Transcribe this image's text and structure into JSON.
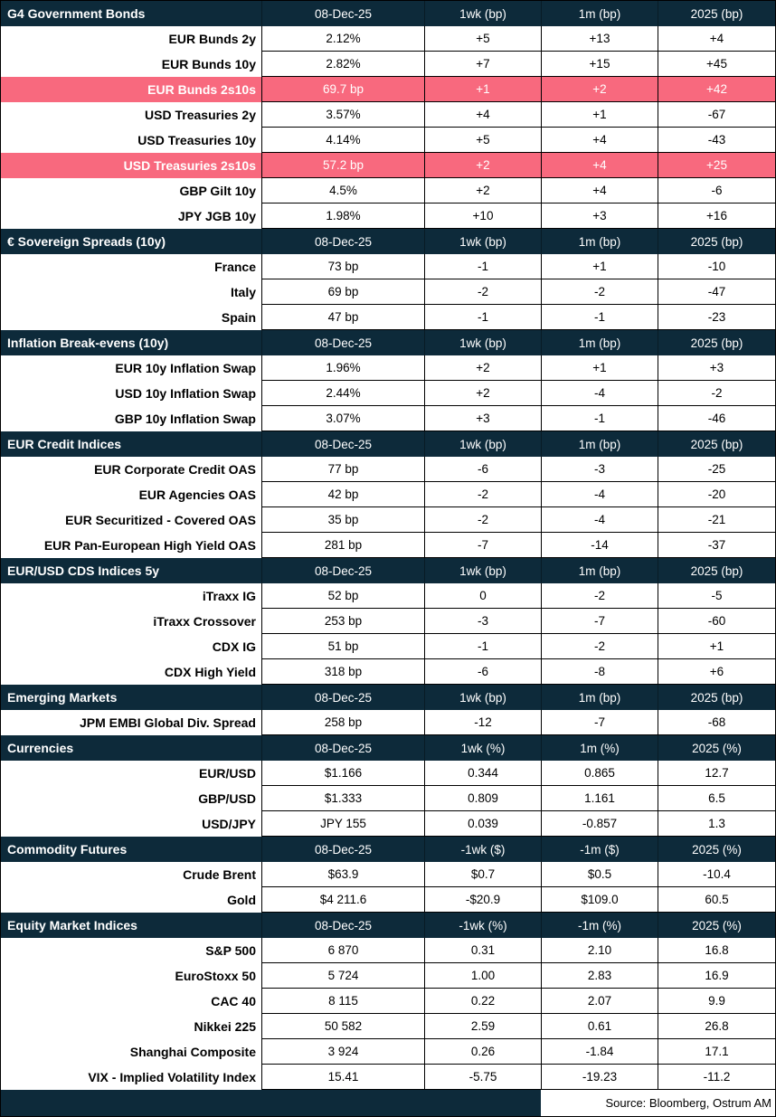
{
  "colors": {
    "header_bg": "#0d2a3a",
    "highlight_bg": "#f8697e",
    "header_text": "#ffffff",
    "body_text": "#000000"
  },
  "chart_data": {
    "type": "table",
    "footer_source": "Source: Bloomberg, Ostrum AM",
    "sections": [
      {
        "title": "G4 Government Bonds",
        "columns": [
          "08-Dec-25",
          "1wk (bp)",
          "1m (bp)",
          "2025 (bp)"
        ],
        "rows": [
          {
            "label": "EUR Bunds 2y",
            "values": [
              "2.12%",
              "+5",
              "+13",
              "+4"
            ],
            "highlight": false
          },
          {
            "label": "EUR Bunds 10y",
            "values": [
              "2.82%",
              "+7",
              "+15",
              "+45"
            ],
            "highlight": false
          },
          {
            "label": "EUR Bunds 2s10s",
            "values": [
              "69.7 bp",
              "+1",
              "+2",
              "+42"
            ],
            "highlight": true
          },
          {
            "label": "USD Treasuries 2y",
            "values": [
              "3.57%",
              "+4",
              "+1",
              "-67"
            ],
            "highlight": false
          },
          {
            "label": "USD Treasuries 10y",
            "values": [
              "4.14%",
              "+5",
              "+4",
              "-43"
            ],
            "highlight": false
          },
          {
            "label": "USD Treasuries 2s10s",
            "values": [
              "57.2 bp",
              "+2",
              "+4",
              "+25"
            ],
            "highlight": true
          },
          {
            "label": "GBP Gilt 10y",
            "values": [
              "4.5%",
              "+2",
              "+4",
              "-6"
            ],
            "highlight": false
          },
          {
            "label": "JPY JGB 10y",
            "values": [
              "1.98%",
              "+10",
              "+3",
              "+16"
            ],
            "highlight": false
          }
        ]
      },
      {
        "title": "€ Sovereign Spreads (10y)",
        "columns": [
          "08-Dec-25",
          "1wk (bp)",
          "1m (bp)",
          "2025 (bp)"
        ],
        "rows": [
          {
            "label": "France",
            "values": [
              "73 bp",
              "-1",
              "+1",
              "-10"
            ],
            "highlight": false
          },
          {
            "label": "Italy",
            "values": [
              "69 bp",
              "-2",
              "-2",
              "-47"
            ],
            "highlight": false
          },
          {
            "label": "Spain",
            "values": [
              "47 bp",
              "-1",
              "-1",
              "-23"
            ],
            "highlight": false
          }
        ]
      },
      {
        "title": "Inflation Break-evens (10y)",
        "columns": [
          "08-Dec-25",
          "1wk (bp)",
          "1m (bp)",
          "2025 (bp)"
        ],
        "rows": [
          {
            "label": "EUR 10y Inflation Swap",
            "values": [
              "1.96%",
              "+2",
              "+1",
              "+3"
            ],
            "highlight": false
          },
          {
            "label": "USD 10y Inflation Swap",
            "values": [
              "2.44%",
              "+2",
              "-4",
              "-2"
            ],
            "highlight": false
          },
          {
            "label": "GBP 10y Inflation Swap",
            "values": [
              "3.07%",
              "+3",
              "-1",
              "-46"
            ],
            "highlight": false
          }
        ]
      },
      {
        "title": "EUR Credit Indices",
        "columns": [
          "08-Dec-25",
          "1wk (bp)",
          "1m (bp)",
          "2025 (bp)"
        ],
        "rows": [
          {
            "label": "EUR Corporate Credit OAS",
            "values": [
              "77 bp",
              "-6",
              "-3",
              "-25"
            ],
            "highlight": false
          },
          {
            "label": "EUR Agencies OAS",
            "values": [
              "42 bp",
              "-2",
              "-4",
              "-20"
            ],
            "highlight": false
          },
          {
            "label": "EUR Securitized - Covered OAS",
            "values": [
              "35 bp",
              "-2",
              "-4",
              "-21"
            ],
            "highlight": false
          },
          {
            "label": "EUR Pan-European High Yield OAS",
            "values": [
              "281 bp",
              "-7",
              "-14",
              "-37"
            ],
            "highlight": false
          }
        ]
      },
      {
        "title": "EUR/USD CDS Indices 5y",
        "columns": [
          "08-Dec-25",
          "1wk (bp)",
          "1m (bp)",
          "2025 (bp)"
        ],
        "rows": [
          {
            "label": "iTraxx IG",
            "values": [
              "52 bp",
              "0",
              "-2",
              "-5"
            ],
            "highlight": false
          },
          {
            "label": "iTraxx Crossover",
            "values": [
              "253 bp",
              "-3",
              "-7",
              "-60"
            ],
            "highlight": false
          },
          {
            "label": "CDX IG",
            "values": [
              "51 bp",
              "-1",
              "-2",
              "+1"
            ],
            "highlight": false
          },
          {
            "label": "CDX High Yield",
            "values": [
              "318 bp",
              "-6",
              "-8",
              "+6"
            ],
            "highlight": false
          }
        ]
      },
      {
        "title": "Emerging Markets",
        "columns": [
          "08-Dec-25",
          "1wk (bp)",
          "1m (bp)",
          "2025 (bp)"
        ],
        "rows": [
          {
            "label": "JPM EMBI Global Div. Spread",
            "values": [
              "258 bp",
              "-12",
              "-7",
              "-68"
            ],
            "highlight": false
          }
        ]
      },
      {
        "title": "Currencies",
        "columns": [
          "08-Dec-25",
          "1wk (%)",
          "1m (%)",
          "2025 (%)"
        ],
        "rows": [
          {
            "label": "EUR/USD",
            "values": [
              "$1.166",
              "0.344",
              "0.865",
              "12.7"
            ],
            "highlight": false
          },
          {
            "label": "GBP/USD",
            "values": [
              "$1.333",
              "0.809",
              "1.161",
              "6.5"
            ],
            "highlight": false
          },
          {
            "label": "USD/JPY",
            "values": [
              "JPY 155",
              "0.039",
              "-0.857",
              "1.3"
            ],
            "highlight": false
          }
        ]
      },
      {
        "title": "Commodity Futures",
        "columns": [
          "08-Dec-25",
          "-1wk ($)",
          "-1m ($)",
          "2025 (%)"
        ],
        "rows": [
          {
            "label": "Crude Brent",
            "values": [
              "$63.9",
              "$0.7",
              "$0.5",
              "-10.4"
            ],
            "highlight": false
          },
          {
            "label": "Gold",
            "values": [
              "$4 211.6",
              "-$20.9",
              "$109.0",
              "60.5"
            ],
            "highlight": false
          }
        ]
      },
      {
        "title": "Equity Market Indices",
        "columns": [
          "08-Dec-25",
          "-1wk (%)",
          "-1m (%)",
          "2025 (%)"
        ],
        "rows": [
          {
            "label": "S&P 500",
            "values": [
              "6 870",
              "0.31",
              "2.10",
              "16.8"
            ],
            "highlight": false
          },
          {
            "label": "EuroStoxx 50",
            "values": [
              "5 724",
              "1.00",
              "2.83",
              "16.9"
            ],
            "highlight": false
          },
          {
            "label": "CAC 40",
            "values": [
              "8 115",
              "0.22",
              "2.07",
              "9.9"
            ],
            "highlight": false
          },
          {
            "label": "Nikkei 225",
            "values": [
              "50 582",
              "2.59",
              "0.61",
              "26.8"
            ],
            "highlight": false
          },
          {
            "label": "Shanghai Composite",
            "values": [
              "3 924",
              "0.26",
              "-1.84",
              "17.1"
            ],
            "highlight": false
          },
          {
            "label": "VIX - Implied Volatility Index",
            "values": [
              "15.41",
              "-5.75",
              "-19.23",
              "-11.2"
            ],
            "highlight": false
          }
        ]
      }
    ]
  }
}
